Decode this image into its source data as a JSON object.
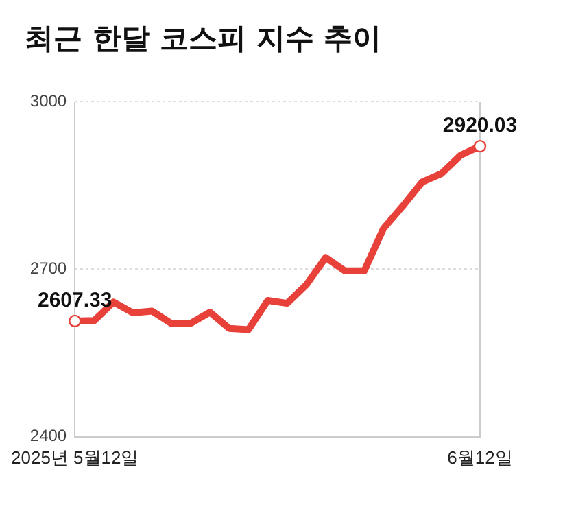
{
  "chart_data": {
    "type": "line",
    "title": "최근 한달 코스피 지수 추이",
    "categories": [
      "2025년 5월12일",
      null,
      null,
      null,
      null,
      null,
      null,
      null,
      null,
      null,
      null,
      null,
      null,
      null,
      null,
      null,
      null,
      null,
      null,
      null,
      null,
      "6월12일"
    ],
    "series": [
      {
        "color": "#e8413a",
        "values": [
          2607.33,
          2608,
          2641,
          2622,
          2625,
          2603,
          2603,
          2623,
          2594,
          2592,
          2644,
          2639,
          2672,
          2721,
          2697,
          2697,
          2773,
          2813,
          2856,
          2871,
          2904,
          2920.03
        ],
        "value_labels": [
          "2607.33",
          null,
          null,
          null,
          null,
          null,
          null,
          null,
          null,
          null,
          null,
          null,
          null,
          null,
          null,
          null,
          null,
          null,
          null,
          null,
          null,
          "2920.03"
        ]
      }
    ],
    "ylim": [
      2400,
      3000
    ],
    "yticks": [
      2400,
      2700,
      3000
    ],
    "grid": true,
    "legend": false,
    "marker": "none",
    "line_style": "solid"
  }
}
